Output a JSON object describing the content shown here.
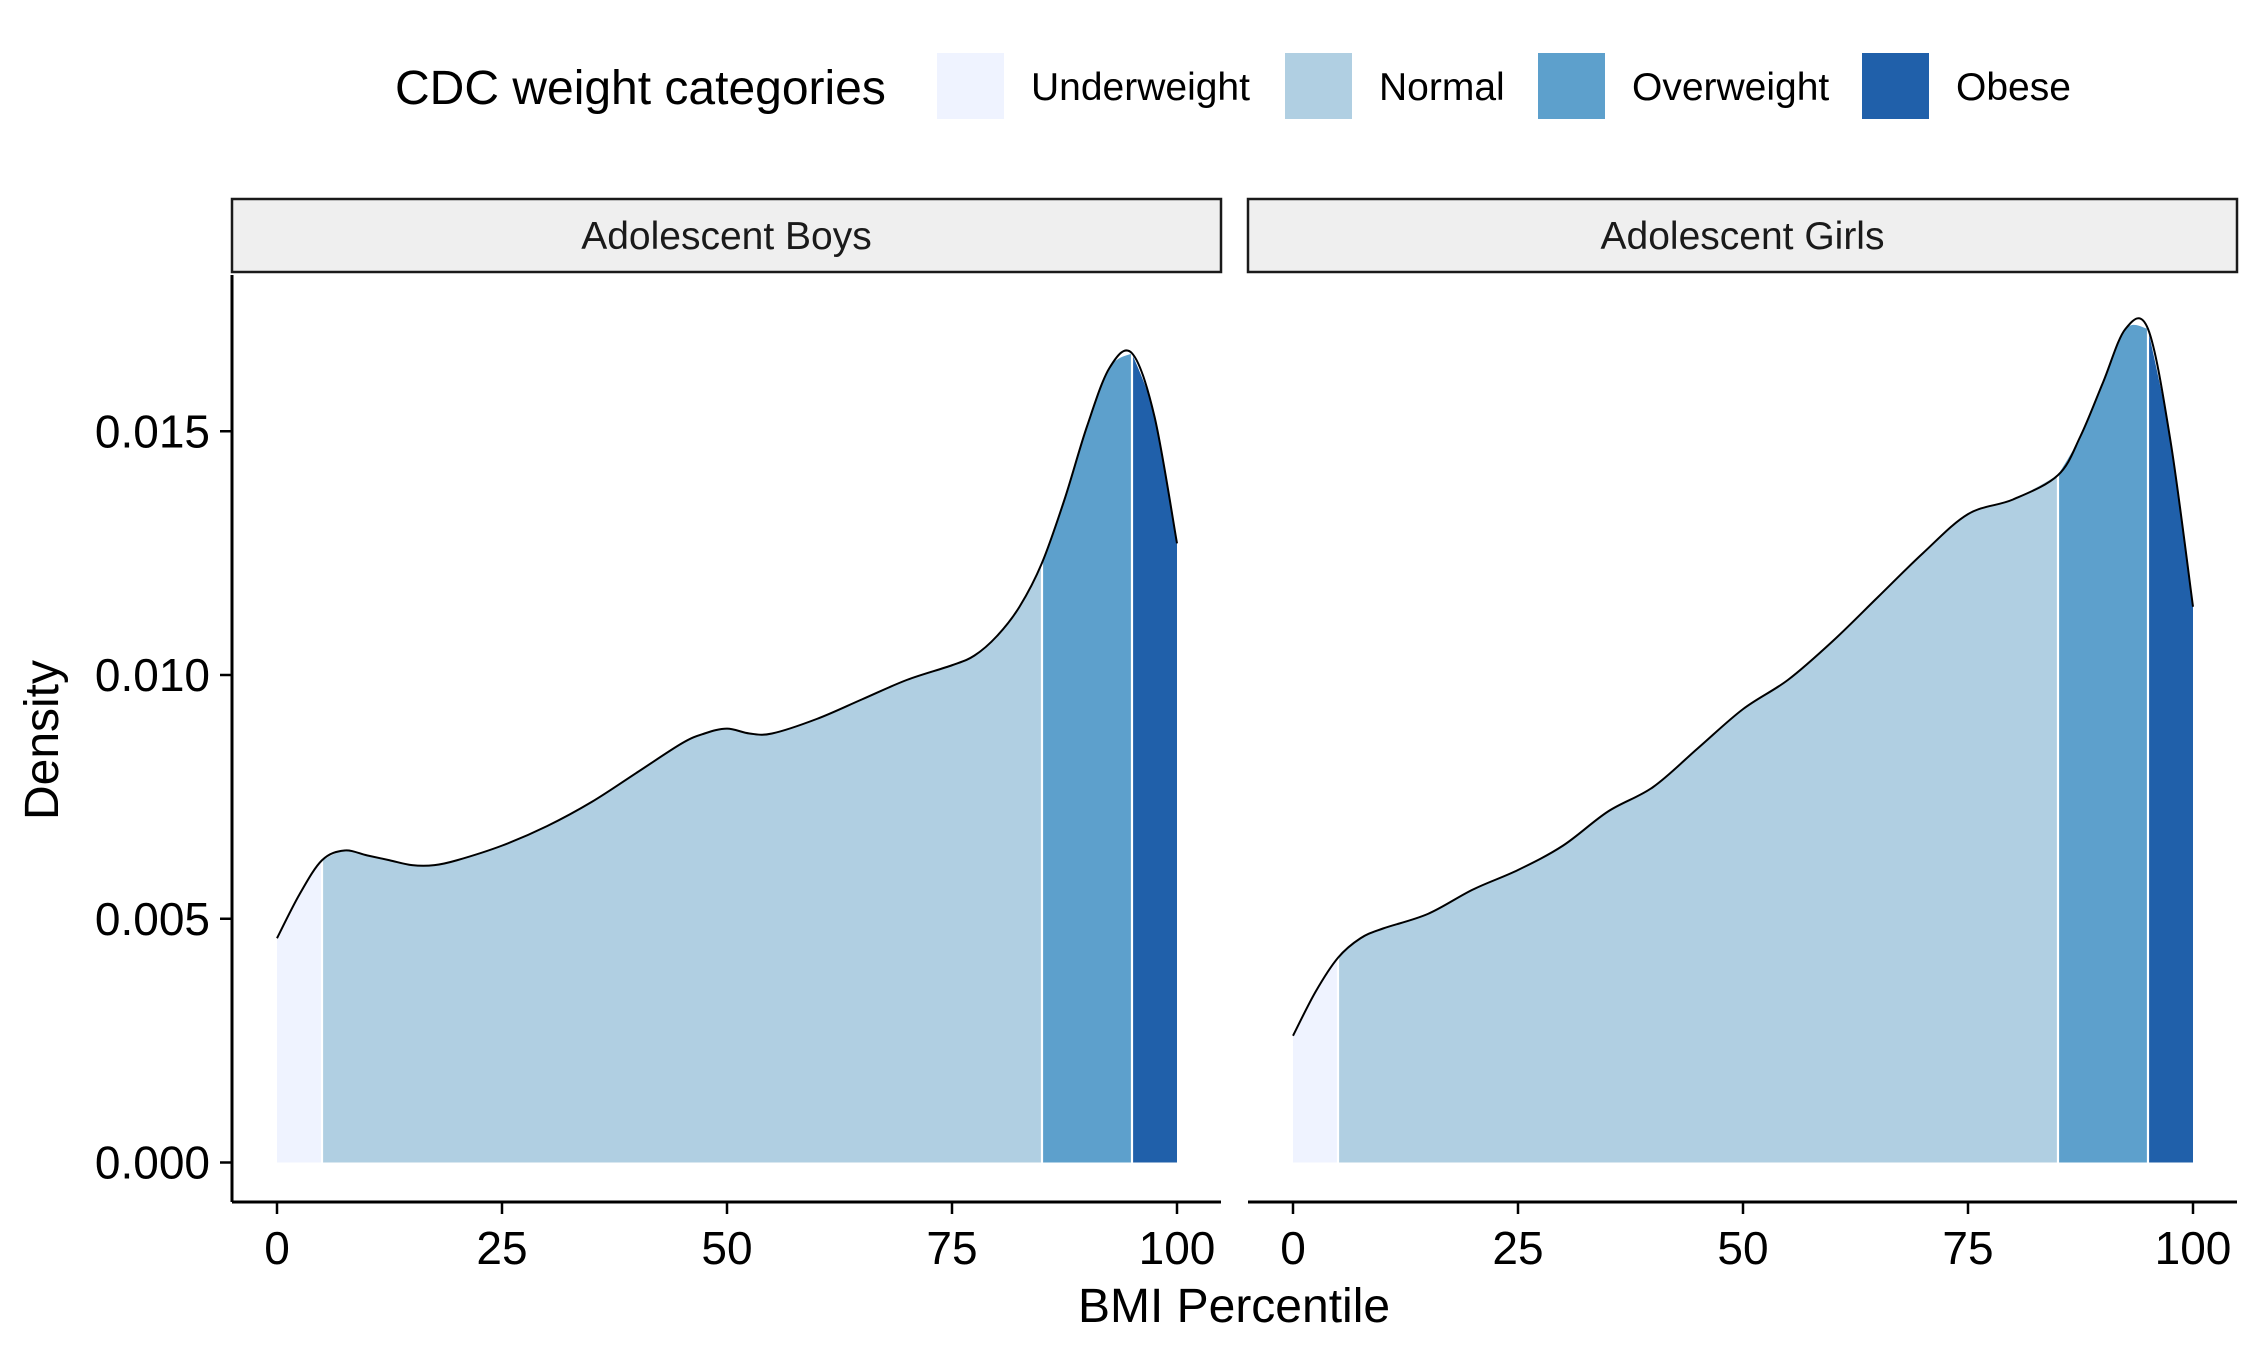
{
  "chart_data": {
    "type": "area",
    "ylabel": "Density",
    "xlabel": "BMI Percentile",
    "xlim": [
      0,
      100
    ],
    "ylim": [
      0,
      0.018
    ],
    "x_ticks": [
      "0",
      "25",
      "50",
      "75",
      "100"
    ],
    "y_ticks": [
      "0.000",
      "0.005",
      "0.010",
      "0.015"
    ],
    "legend": {
      "title": "CDC weight categories",
      "position": "top",
      "items": [
        {
          "label": "Underweight",
          "color": "#eff3ff",
          "from": 0,
          "to": 5
        },
        {
          "label": "Normal",
          "color": "#b0cfe2",
          "from": 5,
          "to": 85
        },
        {
          "label": "Overweight",
          "color": "#5da0cc",
          "from": 85,
          "to": 95
        },
        {
          "label": "Obese",
          "color": "#2060aa",
          "from": 95,
          "to": 100
        }
      ]
    },
    "panels": [
      {
        "title": "Adolescent Boys",
        "x": [
          0,
          2.5,
          5,
          7.5,
          10,
          12.5,
          15,
          17.5,
          20,
          25,
          30,
          35,
          40,
          45,
          47.5,
          50,
          52.5,
          55,
          60,
          65,
          70,
          75,
          77.5,
          80,
          82.5,
          85,
          87.5,
          90,
          92.5,
          95,
          97.5,
          100
        ],
        "y": [
          0.0046,
          0.0055,
          0.0062,
          0.0064,
          0.0063,
          0.0062,
          0.0061,
          0.0061,
          0.0062,
          0.0065,
          0.0069,
          0.0074,
          0.008,
          0.0086,
          0.0088,
          0.0089,
          0.0088,
          0.0088,
          0.0091,
          0.0095,
          0.0099,
          0.0102,
          0.0104,
          0.0108,
          0.0114,
          0.0123,
          0.0136,
          0.0151,
          0.0163,
          0.0166,
          0.0153,
          0.0127
        ]
      },
      {
        "title": "Adolescent Girls",
        "x": [
          0,
          2.5,
          5,
          7.5,
          10,
          15,
          20,
          25,
          30,
          35,
          40,
          45,
          50,
          55,
          60,
          65,
          70,
          75,
          80,
          85,
          87.5,
          90,
          92.5,
          95,
          97.5,
          100
        ],
        "y": [
          0.0026,
          0.0035,
          0.0042,
          0.0046,
          0.0048,
          0.0051,
          0.0056,
          0.006,
          0.0065,
          0.0072,
          0.0077,
          0.0085,
          0.0093,
          0.0099,
          0.0107,
          0.0116,
          0.0125,
          0.0133,
          0.0136,
          0.0141,
          0.0149,
          0.016,
          0.0171,
          0.0171,
          0.0148,
          0.0114
        ]
      }
    ]
  }
}
